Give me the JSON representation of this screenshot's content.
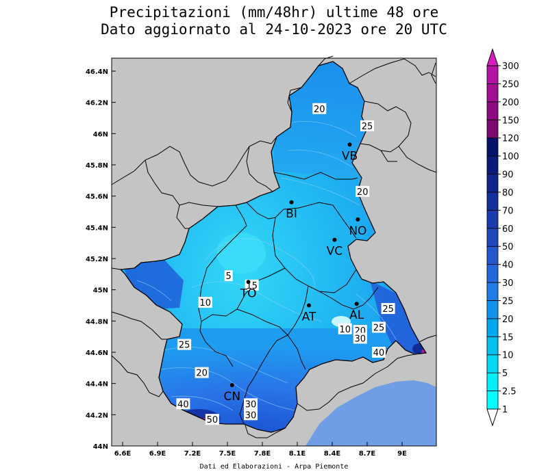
{
  "title": {
    "line1": "Precipitazioni (mm/48hr) ultime 48 ore",
    "line2": "Dato aggiornato al 24-10-2023 ore 20 UTC"
  },
  "footer": "Dati ed Elaborazioni - Arpa Piemonte",
  "axes": {
    "lat_labels": [
      "46.4N",
      "46.2N",
      "46N",
      "45.8N",
      "45.6N",
      "45.4N",
      "45.2N",
      "45N",
      "44.8N",
      "44.6N",
      "44.4N",
      "44.2N",
      "44N"
    ],
    "lat_values": [
      46.4,
      46.2,
      46.0,
      45.8,
      45.6,
      45.4,
      45.2,
      45.0,
      44.8,
      44.6,
      44.4,
      44.2,
      44.0
    ],
    "lon_labels": [
      "6.6E",
      "6.9E",
      "7.2E",
      "7.5E",
      "7.8E",
      "8.1E",
      "8.4E",
      "8.7E",
      "9E"
    ],
    "lon_values": [
      6.6,
      6.9,
      7.2,
      7.5,
      7.8,
      8.1,
      8.4,
      8.7,
      9.0
    ]
  },
  "cities": [
    {
      "name": "VB",
      "lon": 8.55,
      "lat": 45.93
    },
    {
      "name": "BI",
      "lon": 8.05,
      "lat": 45.56
    },
    {
      "name": "NO",
      "lon": 8.62,
      "lat": 45.45
    },
    {
      "name": "VC",
      "lon": 8.42,
      "lat": 45.32
    },
    {
      "name": "TO",
      "lon": 7.68,
      "lat": 45.05
    },
    {
      "name": "AT",
      "lon": 8.2,
      "lat": 44.9
    },
    {
      "name": "AL",
      "lon": 8.61,
      "lat": 44.91
    },
    {
      "name": "CN",
      "lon": 7.54,
      "lat": 44.39
    }
  ],
  "contour_labels": [
    {
      "text": "20",
      "lon": 8.29,
      "lat": 46.16
    },
    {
      "text": "25",
      "lon": 8.7,
      "lat": 46.05
    },
    {
      "text": "20",
      "lon": 8.66,
      "lat": 45.63
    },
    {
      "text": "5",
      "lon": 7.51,
      "lat": 45.09
    },
    {
      "text": "15",
      "lon": 7.71,
      "lat": 45.03
    },
    {
      "text": "10",
      "lon": 7.31,
      "lat": 44.92
    },
    {
      "text": "25",
      "lon": 8.88,
      "lat": 44.88
    },
    {
      "text": "10",
      "lon": 8.51,
      "lat": 44.75
    },
    {
      "text": "20",
      "lon": 8.64,
      "lat": 44.74
    },
    {
      "text": "30",
      "lon": 8.64,
      "lat": 44.69
    },
    {
      "text": "25",
      "lon": 8.8,
      "lat": 44.76
    },
    {
      "text": "40",
      "lon": 8.8,
      "lat": 44.6
    },
    {
      "text": "25",
      "lon": 7.13,
      "lat": 44.65
    },
    {
      "text": "20",
      "lon": 7.28,
      "lat": 44.47
    },
    {
      "text": "40",
      "lon": 7.12,
      "lat": 44.27
    },
    {
      "text": "30",
      "lon": 7.7,
      "lat": 44.27
    },
    {
      "text": "30",
      "lon": 7.7,
      "lat": 44.2
    },
    {
      "text": "50",
      "lon": 7.37,
      "lat": 44.17
    }
  ],
  "legend": {
    "levels": [
      "1",
      "2.5",
      "5",
      "10",
      "15",
      "20",
      "25",
      "30",
      "40",
      "50",
      "60",
      "70",
      "80",
      "90",
      "100",
      "120",
      "150",
      "200",
      "250",
      "300"
    ],
    "colors": [
      "#00ffff",
      "#00f0f8",
      "#00d8f4",
      "#00c0f0",
      "#00a8ee",
      "#1292ea",
      "#1e7ce4",
      "#2468dc",
      "#2456cc",
      "#2048bc",
      "#1a3cac",
      "#14309c",
      "#0e268c",
      "#081c7c",
      "#04126a",
      "#7a0a6c",
      "#8c0c7e",
      "#a01090",
      "#b414a4",
      "#d81ec0"
    ]
  },
  "colors": {
    "background": "#c4c4c4",
    "sea": "#6f9ee4",
    "frame": "#000000"
  }
}
